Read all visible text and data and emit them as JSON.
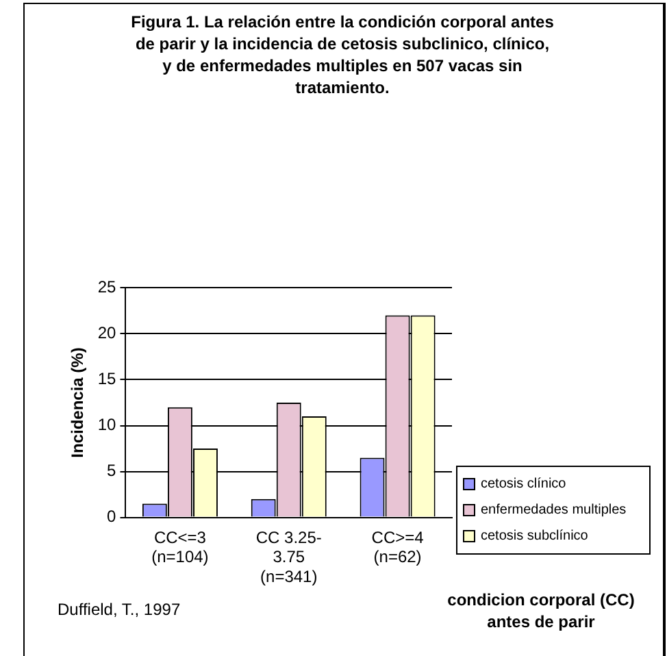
{
  "chart_data": {
    "type": "bar",
    "title": "Figura 1. La relación entre la condición corporal antes de parir y la incidencia de cetosis subclinico, clínico, y de enfermedades multiples en 507 vacas sin tratamiento.",
    "xlabel": "condicion corporal (CC) antes de parir",
    "ylabel": "Incidencia (%)",
    "categories": [
      "CC<=3 (n=104)",
      "CC 3.25-3.75 (n=341)",
      "CC>=4 (n=62)"
    ],
    "series": [
      {
        "name": "cetosis clínico",
        "color": "#9999ff",
        "values": [
          1.5,
          2,
          6.5
        ]
      },
      {
        "name": "enfermedades multiples",
        "color": "#e8c4d4",
        "values": [
          12,
          12.5,
          22
        ]
      },
      {
        "name": "cetosis subclínico",
        "color": "#ffffcc",
        "values": [
          7.5,
          11,
          22
        ]
      }
    ],
    "ylim": [
      0,
      25
    ],
    "yticks": [
      0,
      5,
      10,
      15,
      20,
      25
    ],
    "grid": "y",
    "legend": "right",
    "annotations": [
      "Duffield, T., 1997"
    ]
  }
}
